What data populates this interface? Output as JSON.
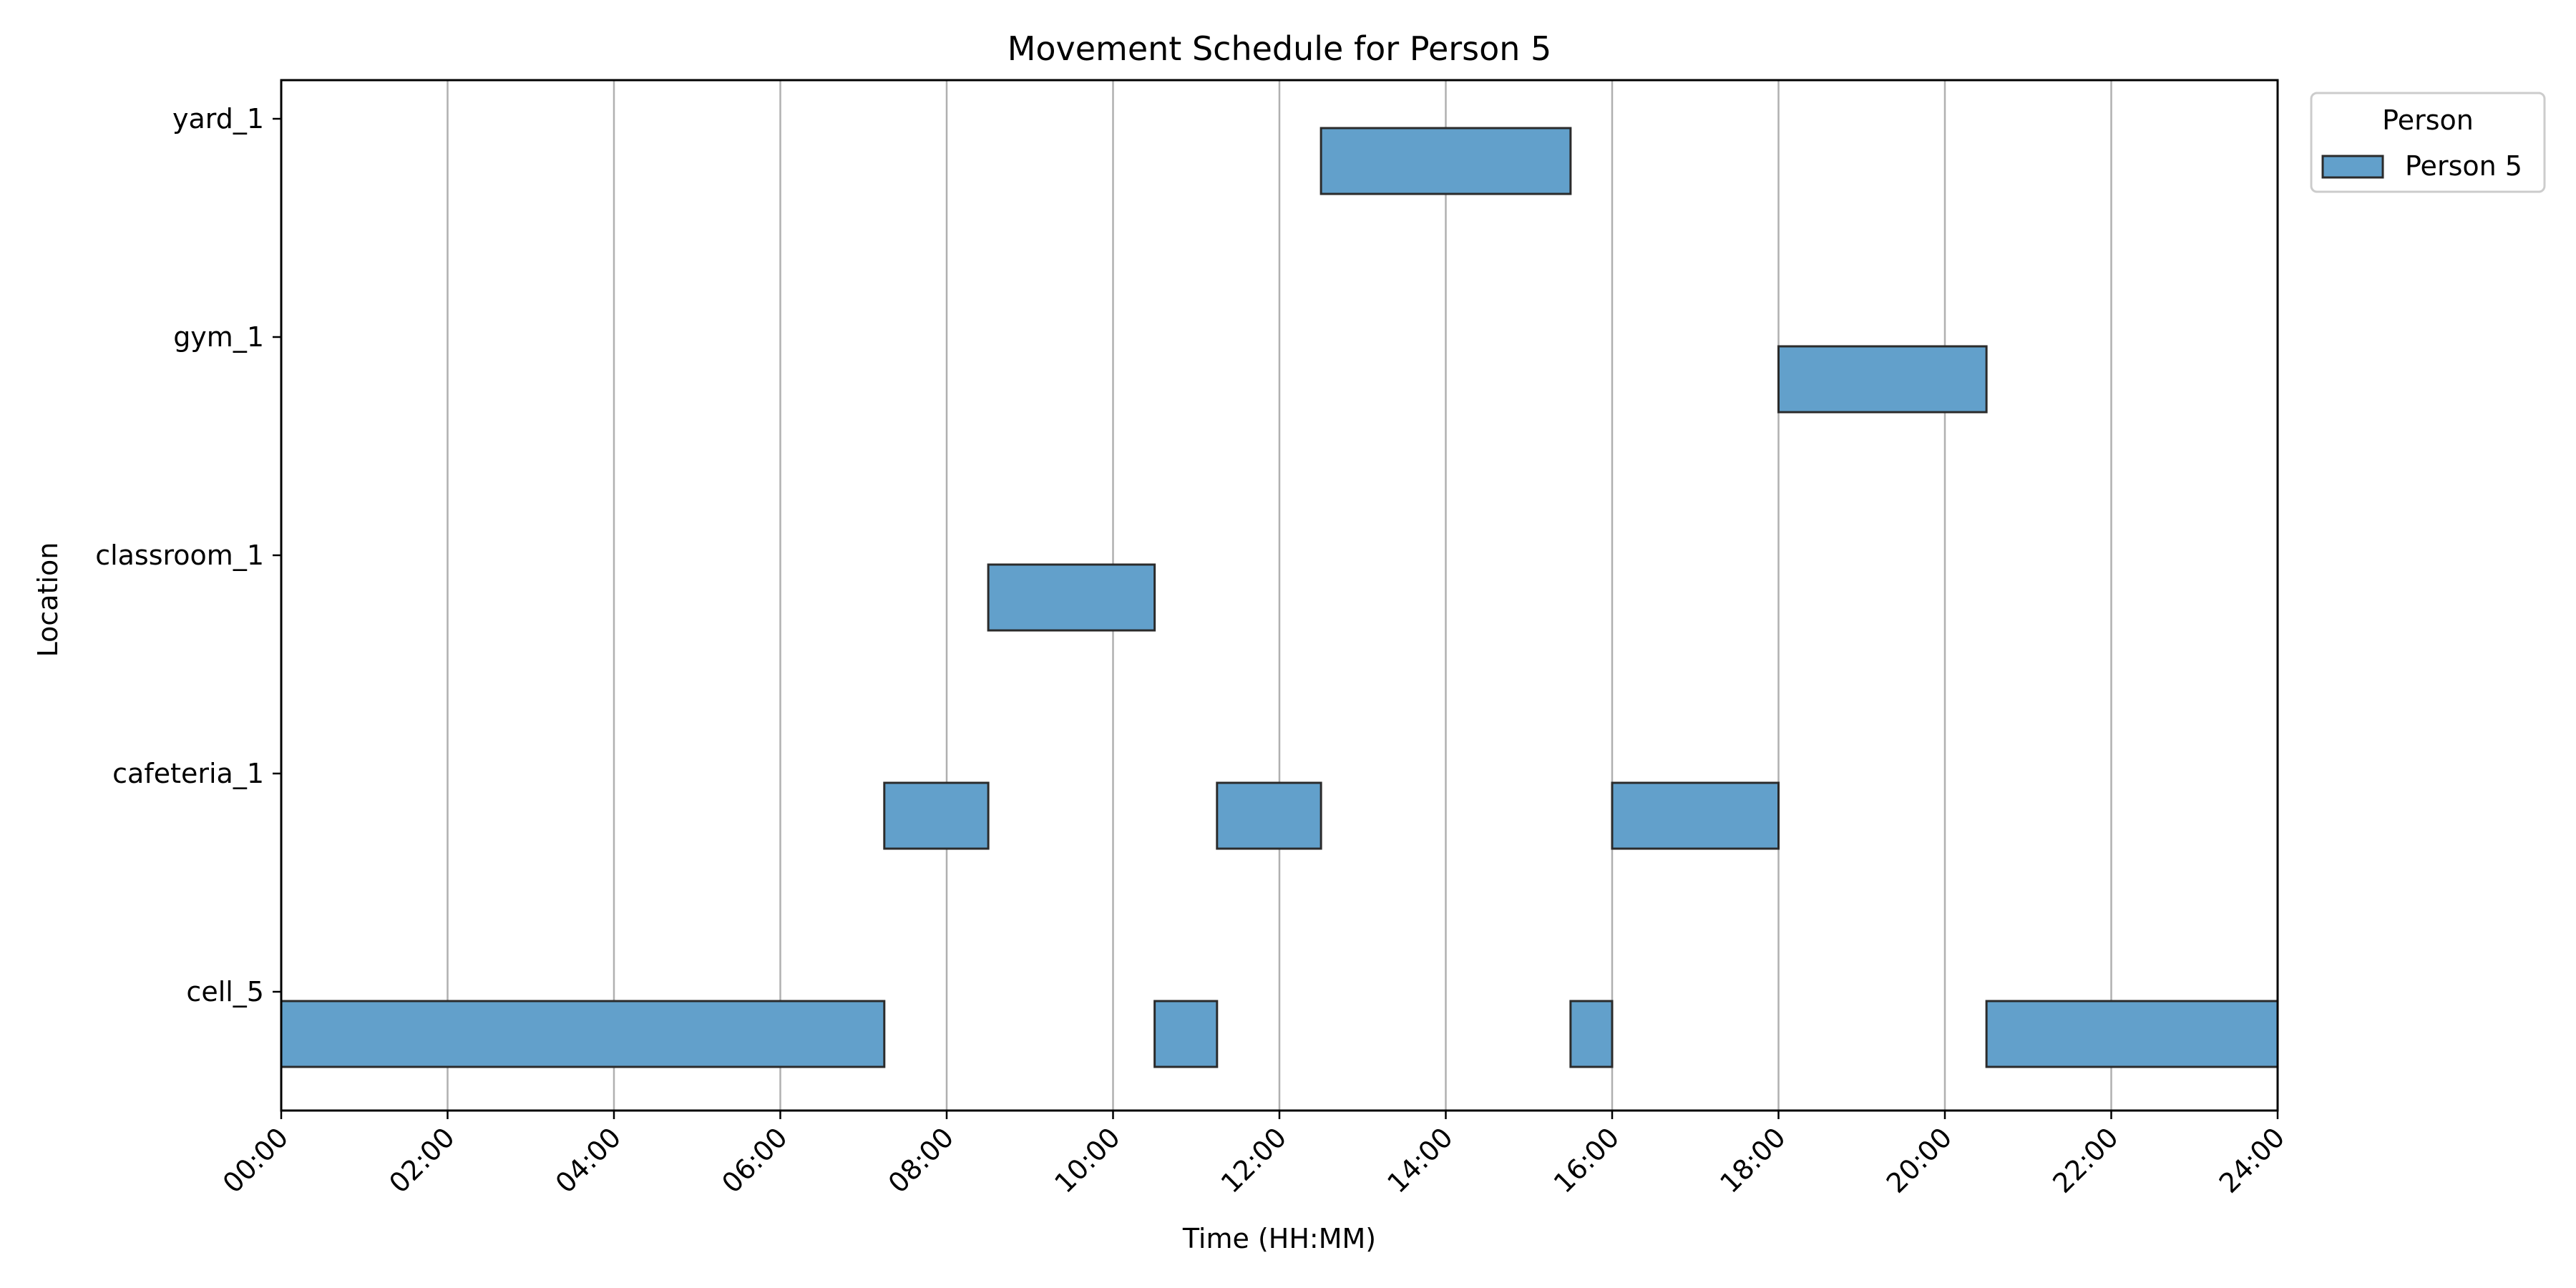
{
  "chart_data": {
    "type": "gantt",
    "title": "Movement Schedule for Person 5",
    "xlabel": "Time (HH:MM)",
    "ylabel": "Location",
    "x_unit": "hours",
    "xlim": [
      0,
      24
    ],
    "x_ticks": [
      "00:00",
      "02:00",
      "04:00",
      "06:00",
      "08:00",
      "10:00",
      "12:00",
      "14:00",
      "16:00",
      "18:00",
      "20:00",
      "22:00",
      "24:00"
    ],
    "categories": [
      "cell_5",
      "cafeteria_1",
      "classroom_1",
      "gym_1",
      "yard_1"
    ],
    "grid": "vertical",
    "legend": {
      "title": "Person",
      "placement": "outside-top-right"
    },
    "series": [
      {
        "name": "Person 5",
        "color": "#62a0cb",
        "edge_color": "#2b2b2b",
        "intervals": [
          {
            "location": "cell_5",
            "start": "00:00",
            "end": "07:15"
          },
          {
            "location": "cafeteria_1",
            "start": "07:15",
            "end": "08:30"
          },
          {
            "location": "classroom_1",
            "start": "08:30",
            "end": "10:30"
          },
          {
            "location": "cell_5",
            "start": "10:30",
            "end": "11:15"
          },
          {
            "location": "cafeteria_1",
            "start": "11:15",
            "end": "12:30"
          },
          {
            "location": "yard_1",
            "start": "12:30",
            "end": "15:30"
          },
          {
            "location": "cell_5",
            "start": "15:30",
            "end": "16:00"
          },
          {
            "location": "cafeteria_1",
            "start": "16:00",
            "end": "18:00"
          },
          {
            "location": "gym_1",
            "start": "18:00",
            "end": "20:30"
          },
          {
            "location": "cell_5",
            "start": "20:30",
            "end": "24:00"
          }
        ]
      }
    ]
  }
}
